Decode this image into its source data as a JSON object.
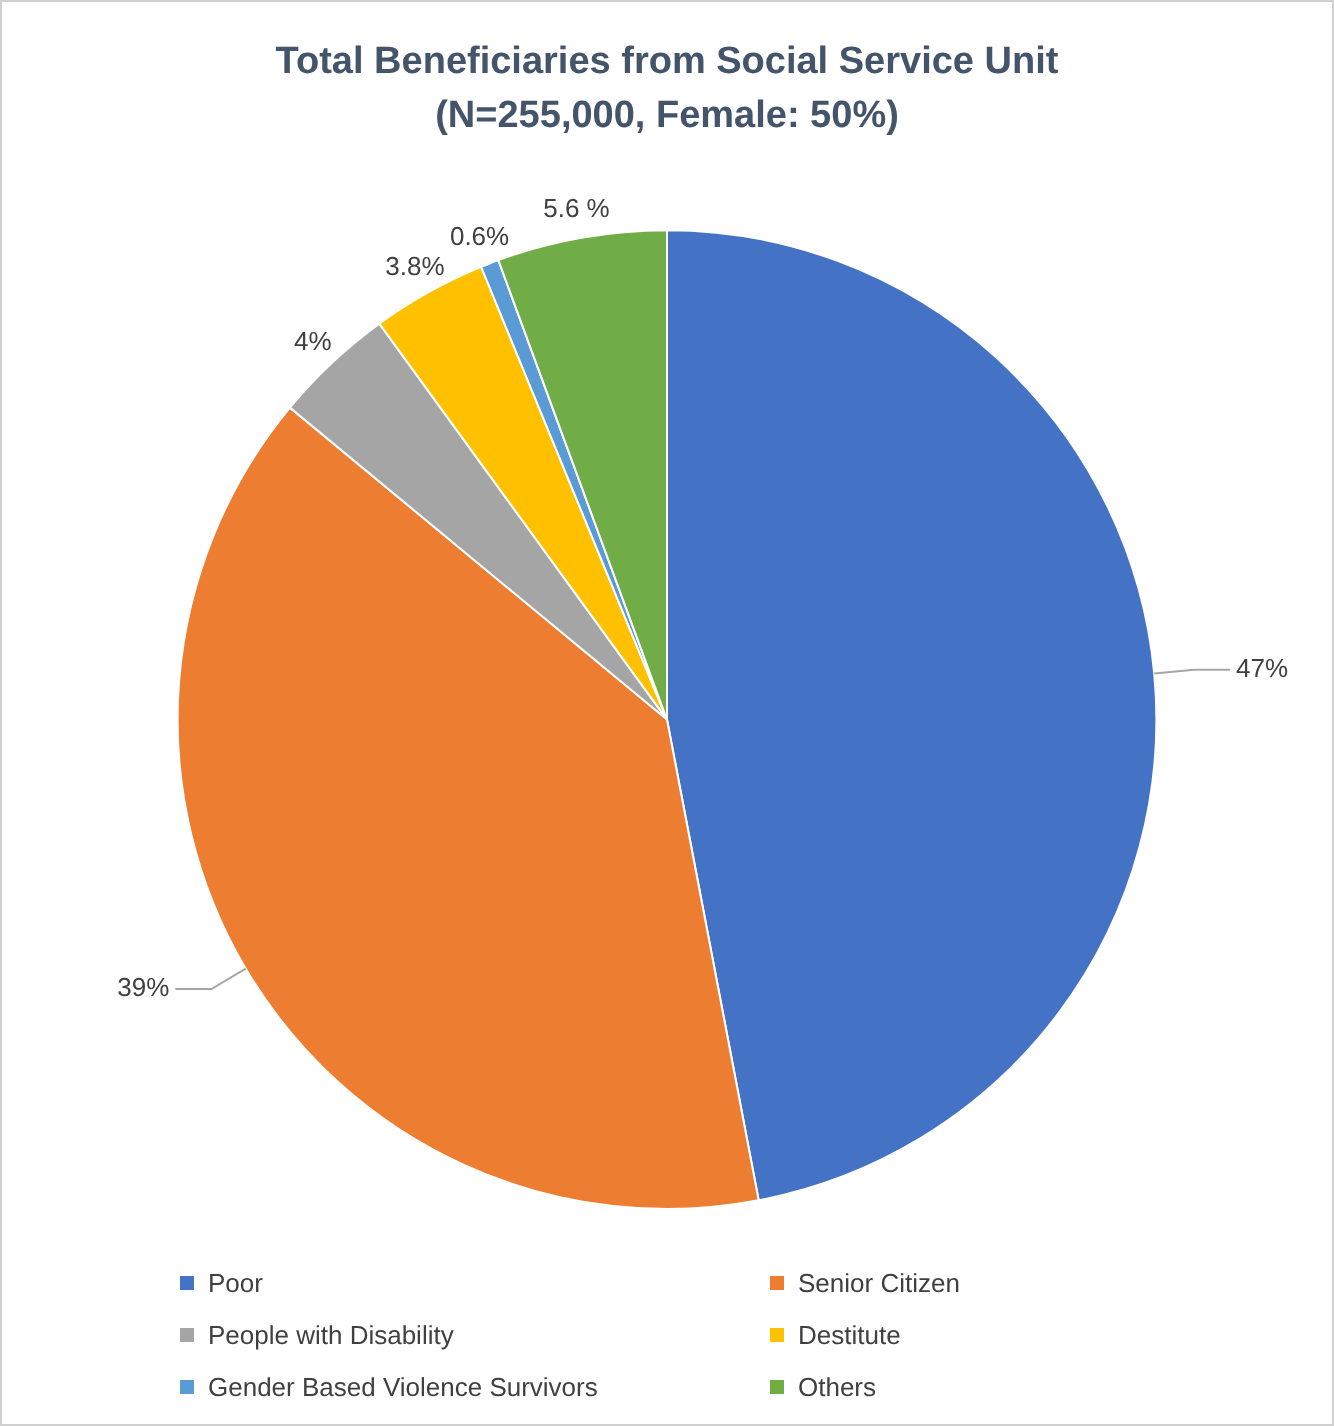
{
  "chart_data": {
    "type": "pie",
    "title": "Total Beneficiaries from Social Service Unit",
    "subtitle": "(N=255,000, Female: 50%)",
    "categories": [
      "Poor",
      "Senior Citizen",
      "People with Disability",
      "Destitute",
      "Gender Based Violence Survivors",
      "Others"
    ],
    "values": [
      47,
      39,
      4,
      3.8,
      0.6,
      5.6
    ],
    "colors": [
      "#4472c4",
      "#ed7d31",
      "#a5a5a5",
      "#ffc000",
      "#5b9bd5",
      "#70ad47"
    ],
    "value_labels": [
      "47%",
      "39%",
      "4%",
      "3.8%",
      "0.6%",
      "5.6 %"
    ],
    "legend": "bottom"
  }
}
